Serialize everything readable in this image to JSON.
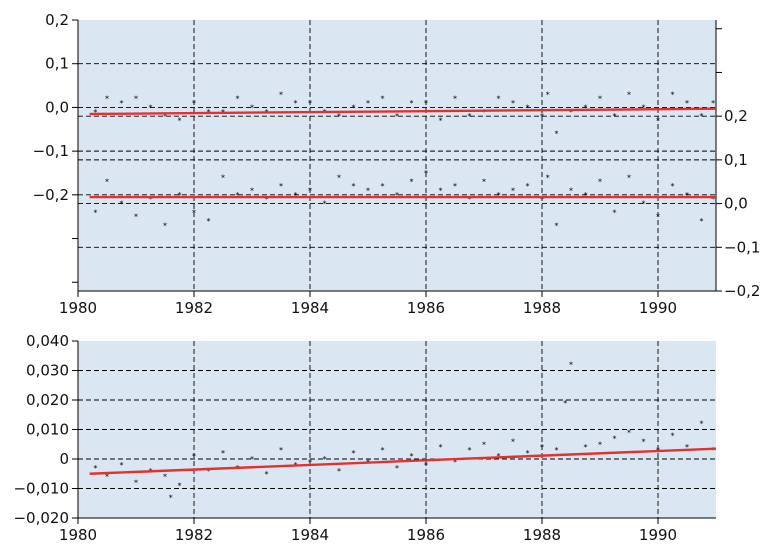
{
  "colors": {
    "plot_background": "#dbe6f3",
    "trend_line": "#e53030",
    "points": "#000000"
  },
  "chart_data": [
    {
      "type": "scatter",
      "panel": "top",
      "title": "",
      "xlabel": "",
      "ylabel": "",
      "grid": true,
      "xlim": [
        1980.0,
        1991.0
      ],
      "x_ticks": [
        1980,
        1982,
        1984,
        1986,
        1988,
        1990
      ],
      "x_tick_labels": [
        "1980",
        "1982",
        "1984",
        "1986",
        "1988",
        "1990"
      ],
      "left_axis": {
        "ylim": [
          -0.42,
          0.2
        ],
        "ticks": [
          0.2,
          0.1,
          0.0,
          -0.1,
          -0.2
        ],
        "tick_labels": [
          "0,2",
          "0,1",
          "0,0",
          "−0,1",
          "−0,2"
        ]
      },
      "right_axis": {
        "ylim": [
          -0.2,
          0.42
        ],
        "ticks": [
          0.2,
          0.1,
          0.0,
          -0.1,
          -0.2
        ],
        "tick_labels": [
          "0,2",
          "0,1",
          "0,0",
          "−0,1",
          "−0,2"
        ]
      },
      "series": [
        {
          "axis": "left",
          "trend": {
            "x": [
              1980.2,
              1991.0
            ],
            "y": [
              -0.015,
              -0.003
            ]
          },
          "x": [
            1980.3,
            1980.5,
            1980.75,
            1981.0,
            1981.25,
            1981.5,
            1981.75,
            1982.0,
            1982.25,
            1982.5,
            1982.75,
            1983.0,
            1983.25,
            1983.5,
            1983.75,
            1984.0,
            1984.25,
            1984.5,
            1984.75,
            1985.0,
            1985.25,
            1985.5,
            1985.75,
            1986.0,
            1986.25,
            1986.5,
            1986.75,
            1987.0,
            1987.25,
            1987.5,
            1987.75,
            1988.0,
            1988.1,
            1988.25,
            1988.5,
            1988.75,
            1989.0,
            1989.25,
            1989.5,
            1989.75,
            1990.0,
            1990.25,
            1990.5,
            1990.75,
            1990.95
          ],
          "y": [
            -0.01,
            0.02,
            0.01,
            0.02,
            0.0,
            -0.02,
            -0.03,
            0.01,
            -0.01,
            -0.01,
            0.02,
            0.0,
            -0.01,
            0.03,
            0.01,
            0.01,
            -0.01,
            -0.02,
            0.0,
            0.01,
            0.02,
            -0.02,
            0.01,
            0.01,
            -0.03,
            0.02,
            -0.02,
            -0.01,
            0.02,
            0.01,
            0.0,
            -0.02,
            0.03,
            -0.06,
            -0.01,
            0.0,
            0.02,
            -0.02,
            0.03,
            0.0,
            -0.03,
            0.03,
            0.01,
            -0.02,
            0.01
          ]
        },
        {
          "axis": "right",
          "trend": {
            "x": [
              1980.2,
              1991.0
            ],
            "y": [
              0.015,
              0.015
            ]
          },
          "x": [
            1980.3,
            1980.5,
            1980.75,
            1981.0,
            1981.25,
            1981.5,
            1981.75,
            1982.0,
            1982.25,
            1982.5,
            1982.75,
            1983.0,
            1983.25,
            1983.5,
            1983.75,
            1984.0,
            1984.25,
            1984.5,
            1984.75,
            1985.0,
            1985.25,
            1985.5,
            1985.75,
            1986.0,
            1986.25,
            1986.5,
            1986.75,
            1987.0,
            1987.25,
            1987.5,
            1987.75,
            1988.0,
            1988.1,
            1988.25,
            1988.5,
            1988.75,
            1989.0,
            1989.25,
            1989.5,
            1989.75,
            1990.0,
            1990.25,
            1990.5,
            1990.75,
            1990.95
          ],
          "y": [
            -0.02,
            0.05,
            0.0,
            -0.03,
            0.01,
            -0.05,
            0.02,
            -0.02,
            -0.04,
            0.06,
            0.02,
            0.03,
            0.01,
            0.04,
            0.02,
            0.03,
            0.0,
            0.06,
            0.04,
            0.03,
            0.04,
            0.02,
            0.05,
            0.07,
            0.03,
            0.04,
            0.01,
            0.05,
            0.02,
            0.03,
            0.04,
            0.01,
            0.06,
            -0.05,
            0.03,
            0.02,
            0.05,
            -0.02,
            0.06,
            0.0,
            -0.03,
            0.04,
            0.02,
            -0.04,
            0.01
          ]
        }
      ]
    },
    {
      "type": "scatter",
      "panel": "bottom",
      "title": "",
      "xlabel": "",
      "ylabel": "",
      "grid": true,
      "xlim": [
        1980.0,
        1991.0
      ],
      "x_ticks": [
        1980,
        1982,
        1984,
        1986,
        1988,
        1990
      ],
      "x_tick_labels": [
        "1980",
        "1982",
        "1984",
        "1986",
        "1988",
        "1990"
      ],
      "ylim": [
        -0.02,
        0.04
      ],
      "y_ticks": [
        0.04,
        0.03,
        0.02,
        0.01,
        0.0,
        -0.01,
        -0.02
      ],
      "y_tick_labels": [
        "0,040",
        "0,030",
        "0,020",
        "0,010",
        "0",
        "−0,010",
        "−0,020"
      ],
      "series": [
        {
          "trend": {
            "x": [
              1980.2,
              1991.0
            ],
            "y": [
              -0.005,
              0.0035
            ]
          },
          "x": [
            1980.3,
            1980.5,
            1980.75,
            1981.0,
            1981.25,
            1981.5,
            1981.6,
            1981.75,
            1982.0,
            1982.25,
            1982.5,
            1982.75,
            1983.0,
            1983.25,
            1983.5,
            1983.75,
            1984.0,
            1984.25,
            1984.5,
            1984.75,
            1985.0,
            1985.25,
            1985.5,
            1985.75,
            1986.0,
            1986.25,
            1986.5,
            1986.75,
            1987.0,
            1987.25,
            1987.5,
            1987.75,
            1988.0,
            1988.25,
            1988.4,
            1988.5,
            1988.75,
            1989.0,
            1989.25,
            1989.5,
            1989.75,
            1990.0,
            1990.25,
            1990.5,
            1990.75,
            1990.95
          ],
          "y": [
            -0.003,
            -0.006,
            -0.002,
            -0.008,
            -0.004,
            -0.006,
            -0.013,
            -0.009,
            0.001,
            -0.004,
            0.002,
            -0.003,
            0.0,
            -0.005,
            0.003,
            -0.002,
            -0.001,
            0.0,
            -0.004,
            0.002,
            -0.001,
            0.003,
            -0.003,
            0.001,
            -0.002,
            0.004,
            -0.001,
            0.003,
            0.005,
            0.001,
            0.006,
            0.002,
            0.004,
            0.003,
            0.019,
            0.032,
            0.004,
            0.005,
            0.007,
            0.009,
            0.006,
            0.003,
            0.008,
            0.004,
            0.012,
            0.003
          ]
        }
      ]
    }
  ]
}
